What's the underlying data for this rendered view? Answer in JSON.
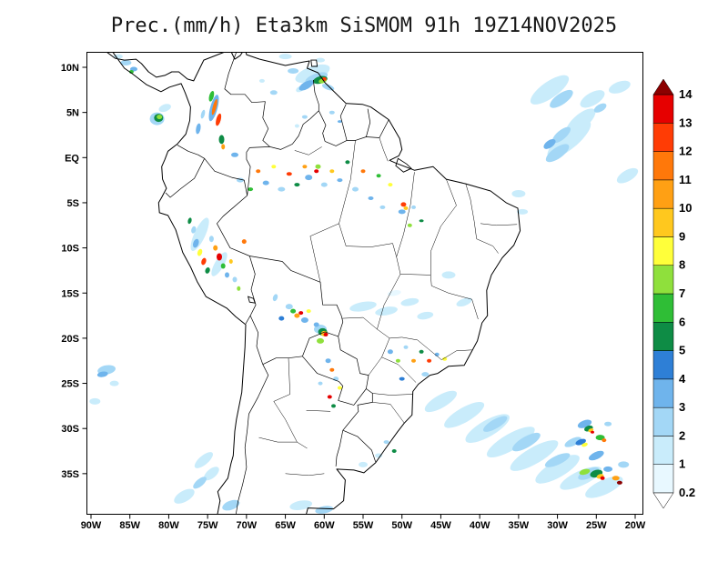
{
  "title": "Prec.(mm/h) Eta3km SiSMOM 91h 19Z14NOV2025",
  "map": {
    "lat_labels": [
      "10N",
      "5N",
      "EQ",
      "5S",
      "10S",
      "15S",
      "20S",
      "25S",
      "30S",
      "35S"
    ],
    "lon_labels": [
      "90W",
      "85W",
      "80W",
      "75W",
      "70W",
      "65W",
      "60W",
      "55W",
      "50W",
      "45W",
      "40W",
      "35W",
      "30W",
      "25W",
      "20W"
    ]
  },
  "colorbar": {
    "tick_labels": [
      "0.2",
      "1",
      "2",
      "3",
      "4",
      "5",
      "6",
      "7",
      "8",
      "9",
      "10",
      "11",
      "12",
      "13",
      "14"
    ],
    "below_min_color": "#FFFFFF",
    "above_max_color": "#8C0000"
  },
  "chart_data": {
    "type": "map",
    "variable": "Prec",
    "units": "mm/h",
    "model": "Eta3km",
    "system": "SiSMOM",
    "forecast_hour": "91h",
    "valid_time": "19Z14NOV2025",
    "region": {
      "lon_range": [
        "90W",
        "20W"
      ],
      "lat_range": [
        "35S",
        "10N"
      ]
    },
    "scale_levels": [
      0.2,
      1,
      2,
      3,
      4,
      5,
      6,
      7,
      8,
      9,
      10,
      11,
      12,
      13,
      14
    ],
    "scale_colors": [
      "#E8F8FF",
      "#C9ECFB",
      "#A3D7F6",
      "#6FB4EC",
      "#2E7FD6",
      "#0E8C45",
      "#2FBE36",
      "#8FE03C",
      "#FFFF3A",
      "#FFC81E",
      "#FFA014",
      "#FF780A",
      "#FF3C05",
      "#E60000"
    ],
    "precip_cells": [
      [
        61.5,
        9.3,
        40,
        16,
        -20,
        1
      ],
      [
        61.0,
        8.8,
        26,
        10,
        -20,
        2
      ],
      [
        60.5,
        8.6,
        16,
        8,
        -15,
        5
      ],
      [
        60.2,
        8.5,
        9,
        5,
        -15,
        7
      ],
      [
        60.0,
        8.7,
        5,
        4,
        0,
        12
      ],
      [
        62.3,
        8.0,
        18,
        8,
        -30,
        3
      ],
      [
        63.1,
        7.6,
        10,
        6,
        -30,
        1
      ],
      [
        59.5,
        7.8,
        14,
        6,
        20,
        2
      ],
      [
        64.0,
        9.6,
        12,
        6,
        0,
        2
      ],
      [
        65.0,
        11.2,
        14,
        6,
        0,
        1
      ],
      [
        31.0,
        7.5,
        50,
        18,
        -35,
        1
      ],
      [
        29.5,
        6.5,
        30,
        12,
        -35,
        2
      ],
      [
        27.0,
        4.0,
        40,
        16,
        -40,
        1
      ],
      [
        28.5,
        2.0,
        60,
        20,
        -40,
        1
      ],
      [
        29.5,
        2.5,
        25,
        10,
        -40,
        2
      ],
      [
        30.0,
        0.5,
        30,
        12,
        -35,
        2
      ],
      [
        31.0,
        1.5,
        15,
        8,
        -35,
        3
      ],
      [
        25.5,
        6.5,
        30,
        14,
        -30,
        1
      ],
      [
        24.5,
        5.5,
        15,
        8,
        -30,
        2
      ],
      [
        22.0,
        7.8,
        25,
        12,
        -20,
        1
      ],
      [
        21.0,
        -2.0,
        26,
        12,
        -30,
        1
      ],
      [
        74.2,
        5.5,
        8,
        30,
        15,
        3
      ],
      [
        74.1,
        5.6,
        4,
        18,
        15,
        11
      ],
      [
        73.6,
        4.2,
        5,
        14,
        15,
        12
      ],
      [
        74.5,
        6.8,
        5,
        12,
        15,
        6
      ],
      [
        75.6,
        4.8,
        4,
        10,
        15,
        2
      ],
      [
        76.2,
        3.2,
        5,
        12,
        10,
        3
      ],
      [
        73.2,
        2.0,
        6,
        10,
        0,
        5
      ],
      [
        73.0,
        1.2,
        4,
        6,
        0,
        10
      ],
      [
        66.5,
        7.2,
        8,
        5,
        0,
        2
      ],
      [
        68.0,
        8.5,
        6,
        4,
        0,
        1
      ],
      [
        81.5,
        4.3,
        16,
        14,
        0,
        2
      ],
      [
        81.3,
        4.4,
        10,
        9,
        0,
        5
      ],
      [
        81.2,
        4.5,
        6,
        5,
        0,
        7
      ],
      [
        80.5,
        5.5,
        14,
        8,
        -20,
        1
      ],
      [
        71.5,
        0.3,
        8,
        5,
        0,
        3
      ],
      [
        70.8,
        -2.5,
        8,
        5,
        0,
        2
      ],
      [
        69.5,
        -3.5,
        6,
        4,
        0,
        6
      ],
      [
        68.5,
        -1.5,
        5,
        4,
        0,
        11
      ],
      [
        67.5,
        -2.8,
        7,
        5,
        0,
        3
      ],
      [
        66.5,
        -1.0,
        5,
        4,
        0,
        8
      ],
      [
        65.5,
        -3.5,
        8,
        5,
        0,
        2
      ],
      [
        64.5,
        -1.8,
        6,
        4,
        0,
        12
      ],
      [
        63.5,
        -3.0,
        6,
        4,
        0,
        5
      ],
      [
        62.5,
        -1.0,
        5,
        4,
        0,
        10
      ],
      [
        62.0,
        -2.2,
        8,
        6,
        0,
        3
      ],
      [
        61.0,
        -1.5,
        5,
        4,
        0,
        13
      ],
      [
        60.8,
        -1.0,
        6,
        5,
        0,
        7
      ],
      [
        60.0,
        -3.0,
        7,
        5,
        0,
        2
      ],
      [
        59.0,
        -1.5,
        5,
        4,
        0,
        9
      ],
      [
        58.0,
        -2.5,
        6,
        4,
        0,
        3
      ],
      [
        57.0,
        -0.5,
        5,
        4,
        0,
        5
      ],
      [
        56.0,
        -3.5,
        7,
        5,
        0,
        2
      ],
      [
        55.0,
        -1.5,
        5,
        4,
        0,
        11
      ],
      [
        54.0,
        -4.5,
        6,
        4,
        0,
        3
      ],
      [
        53.0,
        -2.0,
        5,
        4,
        0,
        6
      ],
      [
        52.5,
        -5.5,
        6,
        4,
        0,
        2
      ],
      [
        51.5,
        -3.0,
        5,
        4,
        0,
        8
      ],
      [
        62.5,
        4.5,
        6,
        4,
        0,
        2
      ],
      [
        63.5,
        3.5,
        5,
        4,
        0,
        1
      ],
      [
        59.0,
        5.0,
        6,
        4,
        0,
        2
      ],
      [
        58.0,
        4.0,
        5,
        3,
        0,
        3
      ],
      [
        49.8,
        -5.2,
        6,
        5,
        0,
        12
      ],
      [
        49.5,
        -5.6,
        5,
        4,
        0,
        9
      ],
      [
        50.0,
        -6.0,
        8,
        5,
        0,
        3
      ],
      [
        49.0,
        -7.5,
        5,
        4,
        0,
        7
      ],
      [
        48.5,
        -5.5,
        5,
        4,
        0,
        2
      ],
      [
        47.5,
        -7.0,
        5,
        3,
        0,
        5
      ],
      [
        76.5,
        -9.5,
        6,
        10,
        20,
        3
      ],
      [
        76.0,
        -10.5,
        5,
        8,
        20,
        8
      ],
      [
        75.5,
        -11.5,
        5,
        8,
        20,
        12
      ],
      [
        75.0,
        -12.5,
        5,
        7,
        20,
        5
      ],
      [
        74.5,
        -9.0,
        5,
        7,
        0,
        2
      ],
      [
        74.0,
        -10.0,
        5,
        6,
        0,
        10
      ],
      [
        73.5,
        -11.0,
        6,
        8,
        0,
        13
      ],
      [
        73.0,
        -12.0,
        5,
        6,
        0,
        6
      ],
      [
        72.5,
        -13.0,
        5,
        6,
        0,
        3
      ],
      [
        72.0,
        -11.5,
        4,
        5,
        0,
        9
      ],
      [
        71.5,
        -13.5,
        5,
        6,
        0,
        2
      ],
      [
        71.0,
        -14.5,
        4,
        5,
        0,
        7
      ],
      [
        76.8,
        -8.0,
        5,
        8,
        15,
        2
      ],
      [
        77.3,
        -7.0,
        4,
        7,
        15,
        5
      ],
      [
        70.3,
        -9.3,
        5,
        5,
        0,
        11
      ],
      [
        76.0,
        -8.5,
        12,
        40,
        25,
        1
      ],
      [
        73.5,
        -11.8,
        10,
        30,
        30,
        1
      ],
      [
        64.5,
        -16.5,
        8,
        6,
        0,
        2
      ],
      [
        64.0,
        -17.0,
        6,
        5,
        0,
        6
      ],
      [
        63.5,
        -17.5,
        6,
        5,
        0,
        10
      ],
      [
        63.0,
        -17.2,
        5,
        4,
        0,
        13
      ],
      [
        62.5,
        -18.0,
        8,
        6,
        0,
        3
      ],
      [
        62.0,
        -17.0,
        5,
        4,
        0,
        8
      ],
      [
        65.5,
        -17.8,
        6,
        5,
        0,
        4
      ],
      [
        66.3,
        -15.5,
        5,
        8,
        20,
        2
      ],
      [
        60.5,
        -19.0,
        14,
        10,
        0,
        2
      ],
      [
        60.2,
        -19.3,
        10,
        8,
        0,
        5
      ],
      [
        60.0,
        -19.5,
        7,
        6,
        0,
        9
      ],
      [
        59.8,
        -19.6,
        5,
        4,
        0,
        13
      ],
      [
        60.5,
        -20.3,
        8,
        6,
        0,
        7
      ],
      [
        61.0,
        -18.5,
        6,
        5,
        0,
        3
      ],
      [
        59.5,
        -22.5,
        6,
        5,
        0,
        3
      ],
      [
        59.0,
        -23.5,
        5,
        4,
        0,
        11
      ],
      [
        58.5,
        -24.5,
        6,
        5,
        0,
        2
      ],
      [
        58.0,
        -25.5,
        5,
        4,
        0,
        8
      ],
      [
        60.5,
        -25.0,
        5,
        4,
        0,
        2
      ],
      [
        59.3,
        -26.5,
        5,
        4,
        0,
        13
      ],
      [
        58.8,
        -27.5,
        5,
        4,
        0,
        5
      ],
      [
        51.5,
        -21.5,
        6,
        5,
        0,
        3
      ],
      [
        50.5,
        -22.5,
        5,
        4,
        0,
        7
      ],
      [
        49.5,
        -21.0,
        5,
        4,
        0,
        2
      ],
      [
        48.5,
        -22.5,
        5,
        4,
        0,
        10
      ],
      [
        47.5,
        -21.5,
        5,
        4,
        0,
        5
      ],
      [
        46.5,
        -22.5,
        5,
        4,
        0,
        12
      ],
      [
        45.5,
        -21.8,
        5,
        4,
        0,
        3
      ],
      [
        44.5,
        -22.3,
        5,
        4,
        0,
        8
      ],
      [
        47.0,
        -24.0,
        8,
        5,
        0,
        2
      ],
      [
        50.0,
        -24.5,
        6,
        4,
        0,
        4
      ],
      [
        55.0,
        -16.5,
        30,
        10,
        -10,
        1
      ],
      [
        52.0,
        -17.0,
        25,
        9,
        -10,
        1
      ],
      [
        49.0,
        -16.0,
        20,
        8,
        -10,
        1
      ],
      [
        47.0,
        -17.5,
        18,
        8,
        -10,
        1
      ],
      [
        51.0,
        -15.0,
        15,
        6,
        -10,
        0.2
      ],
      [
        44.0,
        -13.0,
        15,
        8,
        0,
        1
      ],
      [
        42.0,
        -16.0,
        18,
        8,
        -20,
        1
      ],
      [
        45.0,
        -27.0,
        40,
        14,
        -30,
        1
      ],
      [
        42.0,
        -28.5,
        50,
        16,
        -30,
        1
      ],
      [
        39.0,
        -30.0,
        55,
        18,
        -30,
        1
      ],
      [
        36.0,
        -31.5,
        60,
        18,
        -30,
        1
      ],
      [
        33.0,
        -33.0,
        60,
        18,
        -30,
        1
      ],
      [
        30.0,
        -34.5,
        55,
        18,
        -30,
        1
      ],
      [
        27.0,
        -35.5,
        50,
        16,
        -25,
        1
      ],
      [
        24.0,
        -36.5,
        45,
        16,
        -25,
        1
      ],
      [
        38.0,
        -29.5,
        30,
        10,
        -30,
        2
      ],
      [
        34.0,
        -31.5,
        35,
        12,
        -30,
        2
      ],
      [
        30.0,
        -33.5,
        30,
        10,
        -25,
        2
      ],
      [
        26.0,
        -35.0,
        25,
        10,
        -25,
        2
      ],
      [
        28.0,
        -31.5,
        20,
        8,
        -25,
        2
      ],
      [
        25.0,
        -33.0,
        18,
        8,
        -25,
        3
      ],
      [
        26.5,
        -29.5,
        16,
        8,
        -20,
        3
      ],
      [
        26.0,
        -30.0,
        10,
        6,
        -20,
        5
      ],
      [
        25.7,
        -30.2,
        6,
        4,
        -20,
        9
      ],
      [
        25.5,
        -30.4,
        4,
        3,
        0,
        13
      ],
      [
        27.0,
        -31.5,
        12,
        6,
        -20,
        4
      ],
      [
        26.5,
        -31.8,
        7,
        4,
        -20,
        8
      ],
      [
        24.5,
        -31.0,
        10,
        6,
        0,
        6
      ],
      [
        24.0,
        -31.3,
        5,
        4,
        0,
        11
      ],
      [
        23.5,
        -29.5,
        8,
        5,
        0,
        2
      ],
      [
        25.0,
        -35.0,
        14,
        8,
        -15,
        5
      ],
      [
        24.5,
        -35.3,
        8,
        5,
        -15,
        9
      ],
      [
        24.2,
        -35.5,
        5,
        4,
        0,
        13
      ],
      [
        23.5,
        -34.5,
        10,
        6,
        0,
        3
      ],
      [
        26.5,
        -34.8,
        12,
        6,
        -15,
        7
      ],
      [
        22.5,
        -35.5,
        8,
        5,
        0,
        10
      ],
      [
        22.0,
        -36.0,
        6,
        4,
        0,
        14
      ],
      [
        21.5,
        -34.0,
        12,
        7,
        0,
        2
      ],
      [
        52.0,
        -31.5,
        6,
        4,
        0,
        2
      ],
      [
        53.0,
        -33.0,
        8,
        5,
        0,
        1
      ],
      [
        51.0,
        -32.5,
        5,
        4,
        0,
        5
      ],
      [
        55.0,
        -34.0,
        10,
        6,
        0,
        1
      ],
      [
        88.0,
        -23.5,
        20,
        10,
        -10,
        2
      ],
      [
        88.5,
        -24.0,
        12,
        6,
        -10,
        3
      ],
      [
        87.0,
        -25.0,
        10,
        6,
        0,
        1
      ],
      [
        89.5,
        -27.0,
        12,
        7,
        0,
        1
      ],
      [
        75.5,
        -33.5,
        25,
        10,
        -40,
        1
      ],
      [
        74.5,
        -35.0,
        20,
        10,
        -40,
        1
      ],
      [
        76.0,
        -36.0,
        18,
        8,
        -40,
        2
      ],
      [
        78.0,
        -37.5,
        25,
        12,
        -30,
        1
      ],
      [
        72.0,
        -38.5,
        20,
        10,
        -20,
        2
      ],
      [
        63.0,
        -38.5,
        25,
        10,
        -10,
        1
      ],
      [
        60.0,
        -39.0,
        20,
        8,
        -10,
        2
      ],
      [
        85.5,
        10.5,
        12,
        6,
        0,
        2
      ],
      [
        84.5,
        9.8,
        8,
        5,
        0,
        3
      ],
      [
        86.5,
        11.2,
        10,
        5,
        0,
        1
      ],
      [
        84.8,
        9.5,
        5,
        4,
        0,
        6
      ],
      [
        60.5,
        10.8,
        10,
        5,
        0,
        1
      ],
      [
        35.0,
        -4.0,
        15,
        8,
        0,
        1
      ],
      [
        34.5,
        -6.0,
        12,
        6,
        0,
        1
      ]
    ]
  }
}
